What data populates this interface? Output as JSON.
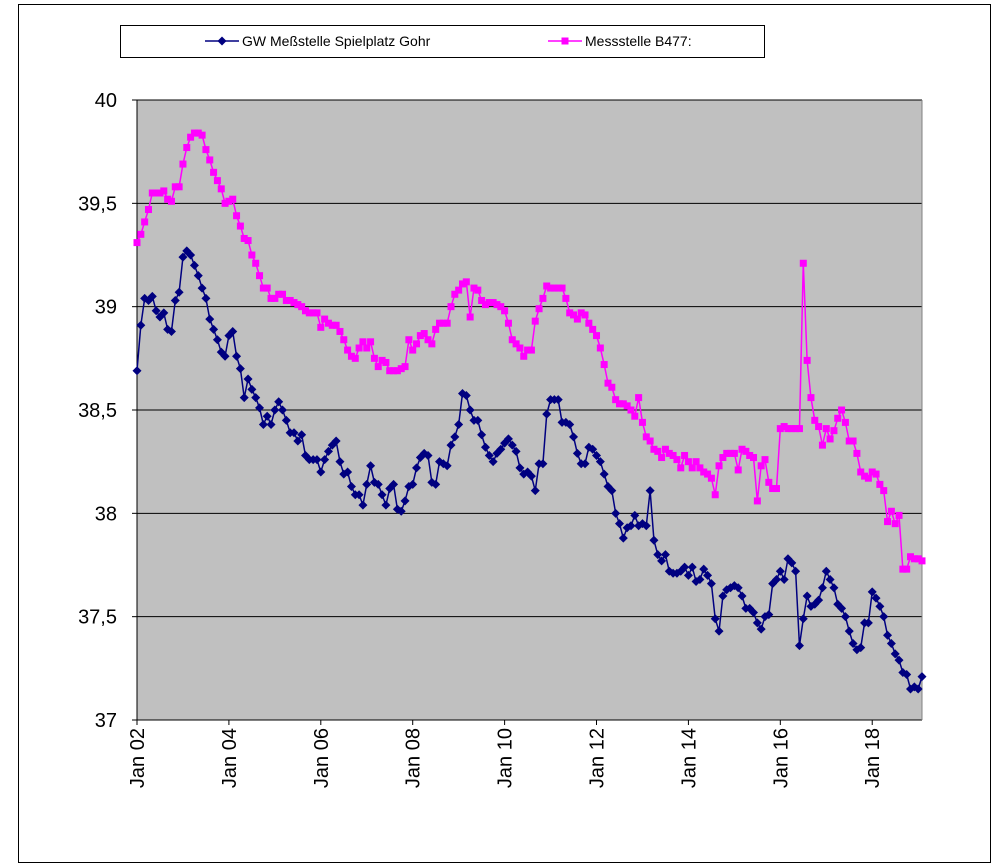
{
  "chart_data": {
    "type": "line",
    "categories": [
      "Jan 02",
      null,
      null,
      null,
      null,
      null,
      null,
      null,
      null,
      null,
      null,
      null,
      null,
      null,
      null,
      null,
      null,
      null,
      null,
      null,
      null,
      null,
      null,
      null,
      "Jan 04",
      null,
      null,
      null,
      null,
      null,
      null,
      null,
      null,
      null,
      null,
      null,
      null,
      null,
      null,
      null,
      null,
      null,
      null,
      null,
      null,
      null,
      null,
      null,
      "Jan 06",
      null,
      null,
      null,
      null,
      null,
      null,
      null,
      null,
      null,
      null,
      null,
      null,
      null,
      null,
      null,
      null,
      null,
      null,
      null,
      null,
      null,
      null,
      null,
      "Jan 08",
      null,
      null,
      null,
      null,
      null,
      null,
      null,
      null,
      null,
      null,
      null,
      null,
      null,
      null,
      null,
      null,
      null,
      null,
      null,
      null,
      null,
      null,
      null,
      "Jan 10",
      null,
      null,
      null,
      null,
      null,
      null,
      null,
      null,
      null,
      null,
      null,
      null,
      null,
      null,
      null,
      null,
      null,
      null,
      null,
      null,
      null,
      null,
      null,
      "Jan 12",
      null,
      null,
      null,
      null,
      null,
      null,
      null,
      null,
      null,
      null,
      null,
      null,
      null,
      null,
      null,
      null,
      null,
      null,
      null,
      null,
      null,
      null,
      null,
      "Jan 14",
      null,
      null,
      null,
      null,
      null,
      null,
      null,
      null,
      null,
      null,
      null,
      null,
      null,
      null,
      null,
      null,
      null,
      null,
      null,
      null,
      null,
      null,
      null,
      "Jan 16",
      null,
      null,
      null,
      null,
      null,
      null,
      null,
      null,
      null,
      null,
      null,
      null,
      null,
      null,
      null,
      null,
      null,
      null,
      null,
      null,
      null,
      null,
      null,
      "Jan 18",
      null,
      null,
      null,
      null,
      null,
      null,
      null,
      null,
      null,
      null,
      null,
      null,
      null
    ],
    "series": [
      {
        "name": "GW Meßstelle Spielplatz Gohr",
        "color": "#000080",
        "marker": "diamond",
        "values": [
          38.69,
          38.91,
          39.04,
          39.03,
          39.05,
          38.98,
          38.95,
          38.97,
          38.89,
          38.88,
          39.03,
          39.07,
          39.24,
          39.27,
          39.25,
          39.2,
          39.15,
          39.09,
          39.04,
          38.94,
          38.89,
          38.84,
          38.78,
          38.76,
          38.86,
          38.88,
          38.76,
          38.7,
          38.56,
          38.65,
          38.6,
          38.56,
          38.51,
          38.43,
          38.47,
          38.43,
          38.5,
          38.54,
          38.5,
          38.45,
          38.39,
          38.39,
          38.35,
          38.38,
          38.28,
          38.26,
          38.26,
          38.26,
          38.2,
          38.26,
          38.3,
          38.33,
          38.35,
          38.25,
          38.19,
          38.2,
          38.13,
          38.09,
          38.09,
          38.04,
          38.14,
          38.23,
          38.15,
          38.14,
          38.09,
          38.04,
          38.12,
          38.14,
          38.02,
          38.01,
          38.06,
          38.13,
          38.14,
          38.22,
          38.27,
          38.29,
          38.28,
          38.15,
          38.14,
          38.25,
          38.24,
          38.23,
          38.33,
          38.37,
          38.43,
          38.58,
          38.57,
          38.5,
          38.45,
          38.45,
          38.38,
          38.32,
          38.28,
          38.25,
          38.29,
          38.31,
          38.34,
          38.36,
          38.33,
          38.3,
          38.22,
          38.19,
          38.2,
          38.18,
          38.11,
          38.24,
          38.24,
          38.48,
          38.55,
          38.55,
          38.55,
          38.44,
          38.44,
          38.43,
          38.37,
          38.29,
          38.24,
          38.24,
          38.32,
          38.31,
          38.28,
          38.25,
          38.19,
          38.13,
          38.11,
          38.0,
          37.95,
          37.88,
          37.93,
          37.94,
          37.99,
          37.94,
          37.95,
          37.94,
          38.11,
          37.87,
          37.8,
          37.77,
          37.8,
          37.72,
          37.71,
          37.71,
          37.72,
          37.74,
          37.7,
          37.74,
          37.67,
          37.68,
          37.73,
          37.7,
          37.66,
          37.49,
          37.43,
          37.6,
          37.63,
          37.64,
          37.65,
          37.64,
          37.6,
          37.54,
          37.54,
          37.52,
          37.47,
          37.44,
          37.5,
          37.51,
          37.66,
          37.68,
          37.72,
          37.68,
          37.78,
          37.76,
          37.72,
          37.36,
          37.49,
          37.6,
          37.55,
          37.56,
          37.58,
          37.64,
          37.72,
          37.68,
          37.64,
          37.56,
          37.54,
          37.5,
          37.43,
          37.37,
          37.34,
          37.35,
          37.47,
          37.47,
          37.62,
          37.59,
          37.55,
          37.5,
          37.41,
          37.37,
          37.32,
          37.29,
          37.23,
          37.22,
          37.15,
          37.16,
          37.15,
          37.21
        ]
      },
      {
        "name": "Messstelle B477:",
        "color": "#ff00ff",
        "marker": "square",
        "values": [
          39.31,
          39.35,
          39.41,
          39.47,
          39.55,
          39.55,
          39.55,
          39.56,
          39.52,
          39.51,
          39.58,
          39.58,
          39.69,
          39.77,
          39.82,
          39.84,
          39.84,
          39.83,
          39.76,
          39.71,
          39.65,
          39.61,
          39.57,
          39.5,
          39.51,
          39.52,
          39.44,
          39.39,
          39.33,
          39.32,
          39.25,
          39.21,
          39.15,
          39.09,
          39.09,
          39.04,
          39.04,
          39.06,
          39.06,
          39.03,
          39.03,
          39.02,
          39.01,
          39.0,
          38.98,
          38.97,
          38.97,
          38.97,
          38.9,
          38.94,
          38.92,
          38.91,
          38.91,
          38.88,
          38.84,
          38.79,
          38.76,
          38.75,
          38.8,
          38.83,
          38.8,
          38.83,
          38.75,
          38.71,
          38.74,
          38.73,
          38.69,
          38.69,
          38.69,
          38.7,
          38.71,
          38.84,
          38.79,
          38.82,
          38.86,
          38.87,
          38.84,
          38.82,
          38.89,
          38.92,
          38.92,
          38.92,
          39.0,
          39.06,
          39.08,
          39.11,
          39.12,
          38.95,
          39.09,
          39.08,
          39.03,
          39.01,
          39.02,
          39.02,
          39.01,
          39.0,
          38.98,
          38.92,
          38.84,
          38.82,
          38.8,
          38.76,
          38.79,
          38.79,
          38.93,
          38.99,
          39.04,
          39.1,
          39.09,
          39.09,
          39.09,
          39.09,
          39.04,
          38.97,
          38.96,
          38.94,
          38.97,
          38.96,
          38.92,
          38.89,
          38.86,
          38.8,
          38.72,
          38.63,
          38.61,
          38.55,
          38.53,
          38.53,
          38.52,
          38.5,
          38.47,
          38.56,
          38.44,
          38.37,
          38.35,
          38.31,
          38.3,
          38.27,
          38.31,
          38.29,
          38.28,
          38.26,
          38.22,
          38.28,
          38.25,
          38.22,
          38.25,
          38.22,
          38.2,
          38.19,
          38.17,
          38.09,
          38.23,
          38.27,
          38.29,
          38.29,
          38.29,
          38.21,
          38.31,
          38.3,
          38.28,
          38.27,
          38.06,
          38.23,
          38.26,
          38.15,
          38.12,
          38.12,
          38.41,
          38.42,
          38.41,
          38.41,
          38.41,
          38.41,
          39.21,
          38.74,
          38.56,
          38.45,
          38.42,
          38.33,
          38.41,
          38.36,
          38.4,
          38.46,
          38.5,
          38.44,
          38.35,
          38.35,
          38.29,
          38.2,
          38.18,
          38.17,
          38.2,
          38.19,
          38.14,
          38.11,
          37.96,
          38.01,
          37.95,
          37.99,
          37.73,
          37.73,
          37.79,
          37.78,
          37.78,
          37.77
        ]
      }
    ],
    "ylim": [
      37,
      40
    ],
    "yticks": [
      37,
      {
        "value": 37.5,
        "label": "37,5"
      },
      38,
      {
        "value": 38.5,
        "label": "38,5"
      },
      39,
      {
        "value": 39.5,
        "label": "39,5"
      },
      40
    ],
    "grid": true
  }
}
